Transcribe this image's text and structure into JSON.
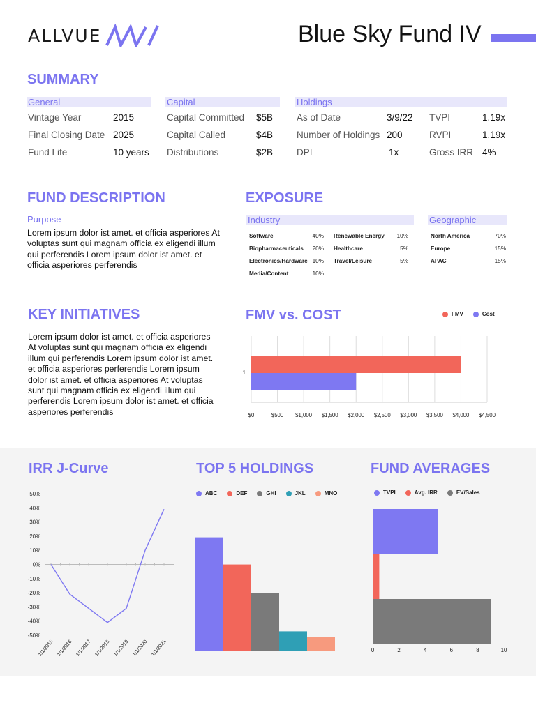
{
  "header": {
    "logo_text": "ALLVUE",
    "fund_title": "Blue Sky Fund IV",
    "accent_color": "#7b74f0"
  },
  "summary": {
    "title": "SUMMARY",
    "general": {
      "heading": "General",
      "rows": [
        {
          "label": "Vintage Year",
          "value": "2015"
        },
        {
          "label": "Final Closing Date",
          "value": "2025"
        },
        {
          "label": "Fund Life",
          "value": "10 years"
        }
      ]
    },
    "capital": {
      "heading": "Capital",
      "rows": [
        {
          "label": "Capital Committed",
          "value": "$5B"
        },
        {
          "label": "Capital Called",
          "value": "$4B"
        },
        {
          "label": "Distributions",
          "value": "$2B"
        }
      ]
    },
    "holdings": {
      "heading": "Holdings",
      "rows": [
        {
          "label": "As of Date",
          "value": "3/9/22"
        },
        {
          "label": "Number of Holdings",
          "value": "200"
        },
        {
          "label": "DPI",
          "value": "1x"
        }
      ],
      "metrics": [
        {
          "label": "TVPI",
          "value": "1.19x"
        },
        {
          "label": "RVPI",
          "value": "1.19x"
        },
        {
          "label": "Gross IRR",
          "value": "4%"
        }
      ]
    }
  },
  "fund_description": {
    "title": "FUND DESCRIPTION",
    "purpose_label": "Purpose",
    "lines": [
      "Lorem ipsum dolor ist amet. et officia asperiores At",
      "voluptas sunt qui magnam officia ex eligendi illum",
      "qui perferendis Lorem ipsum dolor ist amet. et",
      "officia asperiores perferendis"
    ]
  },
  "exposure": {
    "title": "EXPOSURE",
    "industry_heading": "Industry",
    "geographic_heading": "Geographic",
    "industry_left": [
      {
        "name": "Software",
        "value": "40%"
      },
      {
        "name": "Biopharmaceuticals",
        "value": "20%"
      },
      {
        "name": "Electronics/Hardware",
        "value": "10%"
      },
      {
        "name": "Media/Content",
        "value": "10%"
      }
    ],
    "industry_right": [
      {
        "name": "Renewable Energy",
        "value": "10%"
      },
      {
        "name": "Healthcare",
        "value": "5%"
      },
      {
        "name": "Travel/Leisure",
        "value": "5%"
      }
    ],
    "geographic": [
      {
        "name": "North America",
        "value": "70%"
      },
      {
        "name": "Europe",
        "value": "15%"
      },
      {
        "name": "APAC",
        "value": "15%"
      }
    ]
  },
  "key_initiatives": {
    "title": "KEY INITIATIVES",
    "lines": [
      "Lorem ipsum dolor ist amet. et officia asperiores",
      "At voluptas sunt qui magnam officia ex eligendi",
      "illum qui perferendis Lorem ipsum dolor ist amet.",
      "et officia asperiores perferendis Lorem ipsum",
      "dolor ist amet. et officia asperiores At voluptas",
      "sunt qui magnam officia ex eligendi illum qui",
      "perferendis Lorem ipsum dolor ist amet. et officia",
      "asperiores perferendis"
    ]
  },
  "chart_data": [
    {
      "id": "fmv_cost",
      "type": "bar",
      "orientation": "horizontal",
      "title": "FMV vs. COST",
      "categories": [
        "1"
      ],
      "series": [
        {
          "name": "FMV",
          "values": [
            4000
          ],
          "color": "#f2665a"
        },
        {
          "name": "Cost",
          "values": [
            2000
          ],
          "color": "#7e78f2"
        }
      ],
      "xlim": [
        0,
        4500
      ],
      "ticks": [
        0,
        500,
        1000,
        1500,
        2000,
        2500,
        3000,
        3500,
        4000,
        4500
      ],
      "tick_labels": [
        "$0",
        "$500",
        "$1,000",
        "$1,500",
        "$2,000",
        "$2,500",
        "$3,000",
        "$3,500",
        "$4,000",
        "$4,500"
      ],
      "grid": true,
      "legend": "top-right"
    },
    {
      "id": "irr_jcurve",
      "type": "line",
      "title": "IRR J-Curve",
      "x": [
        "1/1/2015",
        "1/1/2016",
        "1/1/2017",
        "1/1/2018",
        "1/1/2019",
        "1/1/2020",
        "1/1/2021"
      ],
      "values": [
        0,
        -21,
        -31,
        -41,
        -31,
        10,
        39
      ],
      "ylim": [
        -50,
        50
      ],
      "y_ticks": [
        "50%",
        "40%",
        "30%",
        "20%",
        "10%",
        "0%",
        "-10%",
        "-20%",
        "-30%",
        "-40%",
        "-50%"
      ],
      "color": "#7e78f2"
    },
    {
      "id": "top5",
      "type": "bar",
      "title": "TOP 5 HOLDINGS",
      "categories": [
        "ABC",
        "DEF",
        "GHI",
        "JKL",
        "MNO"
      ],
      "values": [
        100,
        76,
        51,
        17,
        12
      ],
      "colors": [
        "#7e78f2",
        "#f2665a",
        "#7a7a7a",
        "#2f9fb5",
        "#f79a7e"
      ],
      "ylim": [
        0,
        125
      ],
      "legend": "top"
    },
    {
      "id": "fund_averages",
      "type": "bar",
      "orientation": "horizontal",
      "title": "FUND AVERAGES",
      "series": [
        {
          "name": "TVPI",
          "values": [
            5
          ],
          "color": "#7e78f2"
        },
        {
          "name": "Avg. IRR",
          "values": [
            0.5
          ],
          "color": "#f2665a"
        },
        {
          "name": "EV/Sales",
          "values": [
            9
          ],
          "color": "#7a7a7a"
        }
      ],
      "xlim": [
        0,
        10
      ],
      "ticks": [
        "0",
        "2",
        "4",
        "6",
        "8",
        "10"
      ],
      "legend": "top"
    }
  ]
}
